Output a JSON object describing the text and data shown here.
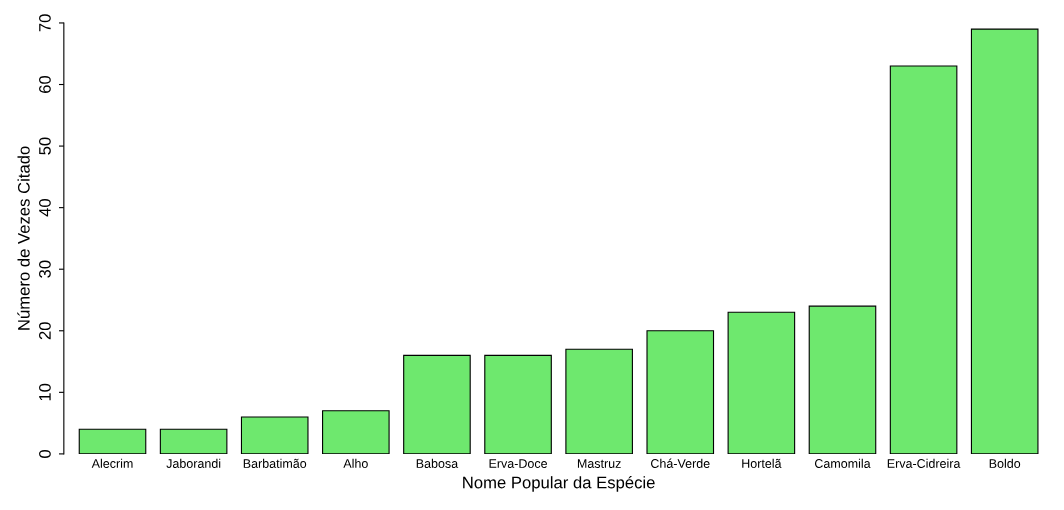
{
  "chart_data": {
    "type": "bar",
    "xlabel": "Nome Popular da Espécie",
    "ylabel": "Número de Vezes Citado",
    "categories": [
      "Alecrim",
      "Jaborandi",
      "Barbatimão",
      "Alho",
      "Babosa",
      "Erva-Doce",
      "Mastruz",
      "Chá-Verde",
      "Hortelã",
      "Camomila",
      "Erva-Cidreira",
      "Boldo"
    ],
    "values": [
      4,
      4,
      6,
      7,
      16,
      16,
      17,
      20,
      23,
      24,
      63,
      69
    ],
    "color": "#6ee86e",
    "ylim": [
      0,
      70
    ],
    "yticks": [
      0,
      10,
      20,
      30,
      40,
      50,
      60,
      70
    ],
    "grid": false,
    "legend": false
  }
}
